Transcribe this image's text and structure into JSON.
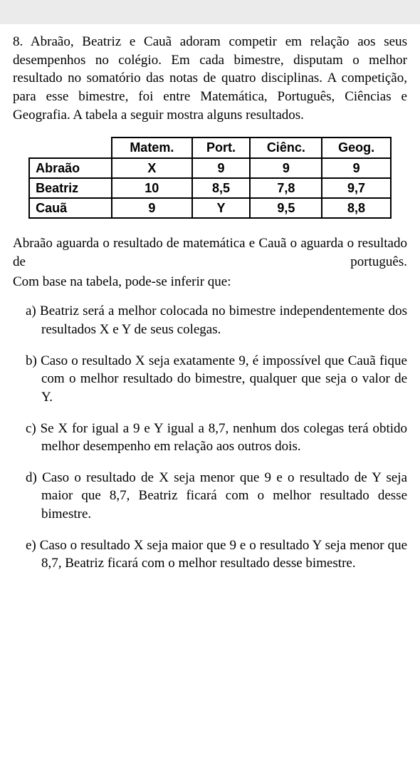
{
  "topbar": {
    "color": "#ebebeb"
  },
  "question": {
    "number": "8.",
    "intro": "Abraão, Beatriz e Cauã adoram competir em relação aos seus desempenhos no colégio. Em cada bimestre, disputam o melhor resultado no somatório das notas de quatro disciplinas. A competição, para esse bimestre, foi entre Matemática, Português, Ciências e Geografia. A tabela a seguir mostra alguns resultados."
  },
  "table": {
    "columns": [
      "",
      "Matem.",
      "Port.",
      "Ciênc.",
      "Geog."
    ],
    "rows": [
      {
        "name": "Abraão",
        "cells": [
          "X",
          "9",
          "9",
          "9"
        ]
      },
      {
        "name": "Beatriz",
        "cells": [
          "10",
          "8,5",
          "7,8",
          "9,7"
        ]
      },
      {
        "name": "Cauã",
        "cells": [
          "9",
          "Y",
          "9,5",
          "8,8"
        ]
      }
    ],
    "border_color": "#000000",
    "font_family": "Arial",
    "font_weight": "bold"
  },
  "post_table": {
    "line1": "Abraão aguarda o resultado de matemática e Cauã o aguarda o resultado de português.",
    "line2": "Com base na tabela, pode-se inferir que:"
  },
  "options": {
    "a": {
      "letter": "a)",
      "text": "Beatriz será a melhor colocada no bimestre independentemente dos resultados X e Y de seus colegas."
    },
    "b": {
      "letter": "b)",
      "text": "Caso o resultado X seja exatamente 9, é impossível que Cauã fique com o melhor resultado do bimestre, qualquer que seja o valor de Y."
    },
    "c": {
      "letter": "c)",
      "text": "Se X for igual a 9 e Y igual a 8,7, nenhum dos colegas terá obtido melhor desempenho em relação aos outros dois."
    },
    "d": {
      "letter": "d)",
      "text": "Caso o resultado de X seja menor que 9 e o resultado de Y seja maior que 8,7, Beatriz ficará com o melhor resultado desse bimestre."
    },
    "e": {
      "letter": "e)",
      "text": "Caso o resultado X seja maior que 9 e o resultado Y seja menor que 8,7, Beatriz ficará com o melhor resultado desse bimestre."
    }
  }
}
